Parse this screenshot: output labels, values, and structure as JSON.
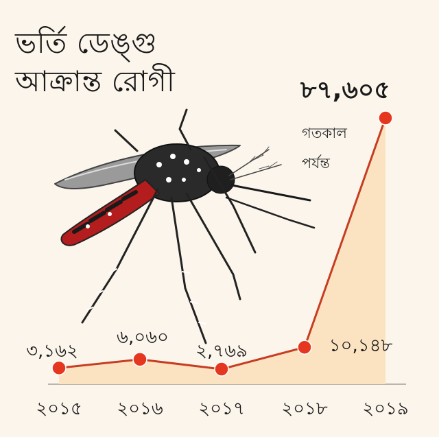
{
  "title": {
    "line1": "ভর্তি ডেঙ্গু",
    "line2": "আক্রান্ত রোগী"
  },
  "annotation": {
    "peak_value": "৮৭,৬০৫",
    "note_line1": "গতকাল",
    "note_line2": "পর্যন্ত"
  },
  "colors": {
    "line": "#c63d22",
    "marker": "#e5371f",
    "area": "#fbe3c2",
    "background": "#fbf5ec"
  },
  "illustration": "mosquito-icon",
  "chart_data": {
    "type": "area",
    "categories": [
      "২০১৫",
      "২০১৬",
      "২০১৭",
      "২০১৮",
      "২০১৯"
    ],
    "values": [
      3162,
      6060,
      2769,
      10148,
      87605
    ],
    "data_labels": [
      "৩,১৬২",
      "৬,০৬০",
      "২,৭৬৯",
      "১০,১৪৮",
      "৮৭,৬০৫"
    ],
    "title": "ভর্তি ডেঙ্গু আক্রান্ত রোগী",
    "xlabel": "",
    "ylabel": "",
    "ylim": [
      0,
      87605
    ],
    "grid": false,
    "legend": "none"
  }
}
